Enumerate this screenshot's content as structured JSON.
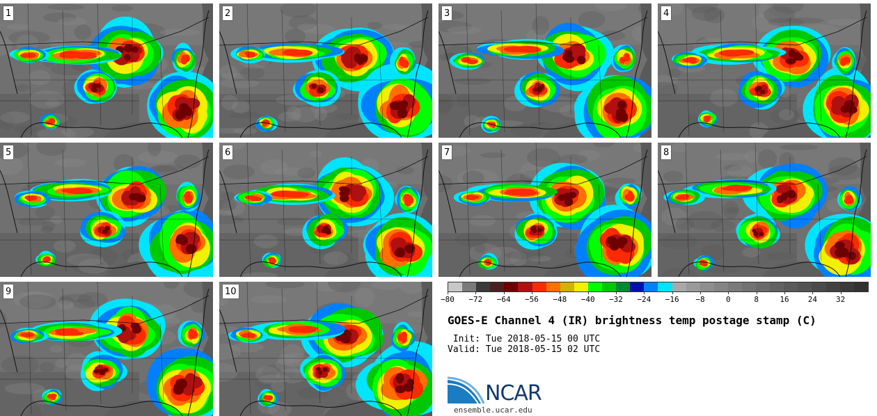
{
  "panels": [
    {
      "label": "1"
    },
    {
      "label": "2"
    },
    {
      "label": "3"
    },
    {
      "label": "4"
    },
    {
      "label": "5"
    },
    {
      "label": "6"
    },
    {
      "label": "7"
    },
    {
      "label": "8"
    },
    {
      "label": "9"
    },
    {
      "label": "10"
    }
  ],
  "colorbar": {
    "colors": [
      "#c8c8c8",
      "#7a7a7a",
      "#3a3a3a",
      "#4b1f1f",
      "#6e0000",
      "#b01010",
      "#ff2a00",
      "#ff7000",
      "#d4b000",
      "#f0f000",
      "#00ff00",
      "#00c800",
      "#008a30",
      "#0010b0",
      "#0080ff",
      "#00e5ff",
      "#a8a8a8",
      "#9a9a9a",
      "#8e8e8e",
      "#848484",
      "#7a7a7a",
      "#727272",
      "#6a6a6a",
      "#626262",
      "#5a5a5a",
      "#525252",
      "#4a4a4a",
      "#424242",
      "#3a3a3a",
      "#323232"
    ],
    "ticks": [
      "−80",
      "−72",
      "−64",
      "−56",
      "−48",
      "−40",
      "−32",
      "−24",
      "−16",
      "−8",
      "0",
      "8",
      "16",
      "24",
      "32"
    ],
    "range": [
      -80,
      40
    ],
    "unit": "C"
  },
  "title": "GOES-E Channel 4 (IR) brightness temp postage stamp (C)",
  "init_label": " Init: Tue 2018-05-15 00 UTC",
  "valid_label": "Valid: Tue 2018-05-15 02 UTC",
  "logo": {
    "text": "NCAR",
    "url": "ensemble.ucar.edu",
    "brand_color": "#123a6b",
    "accent_color": "#1a7cc1"
  }
}
